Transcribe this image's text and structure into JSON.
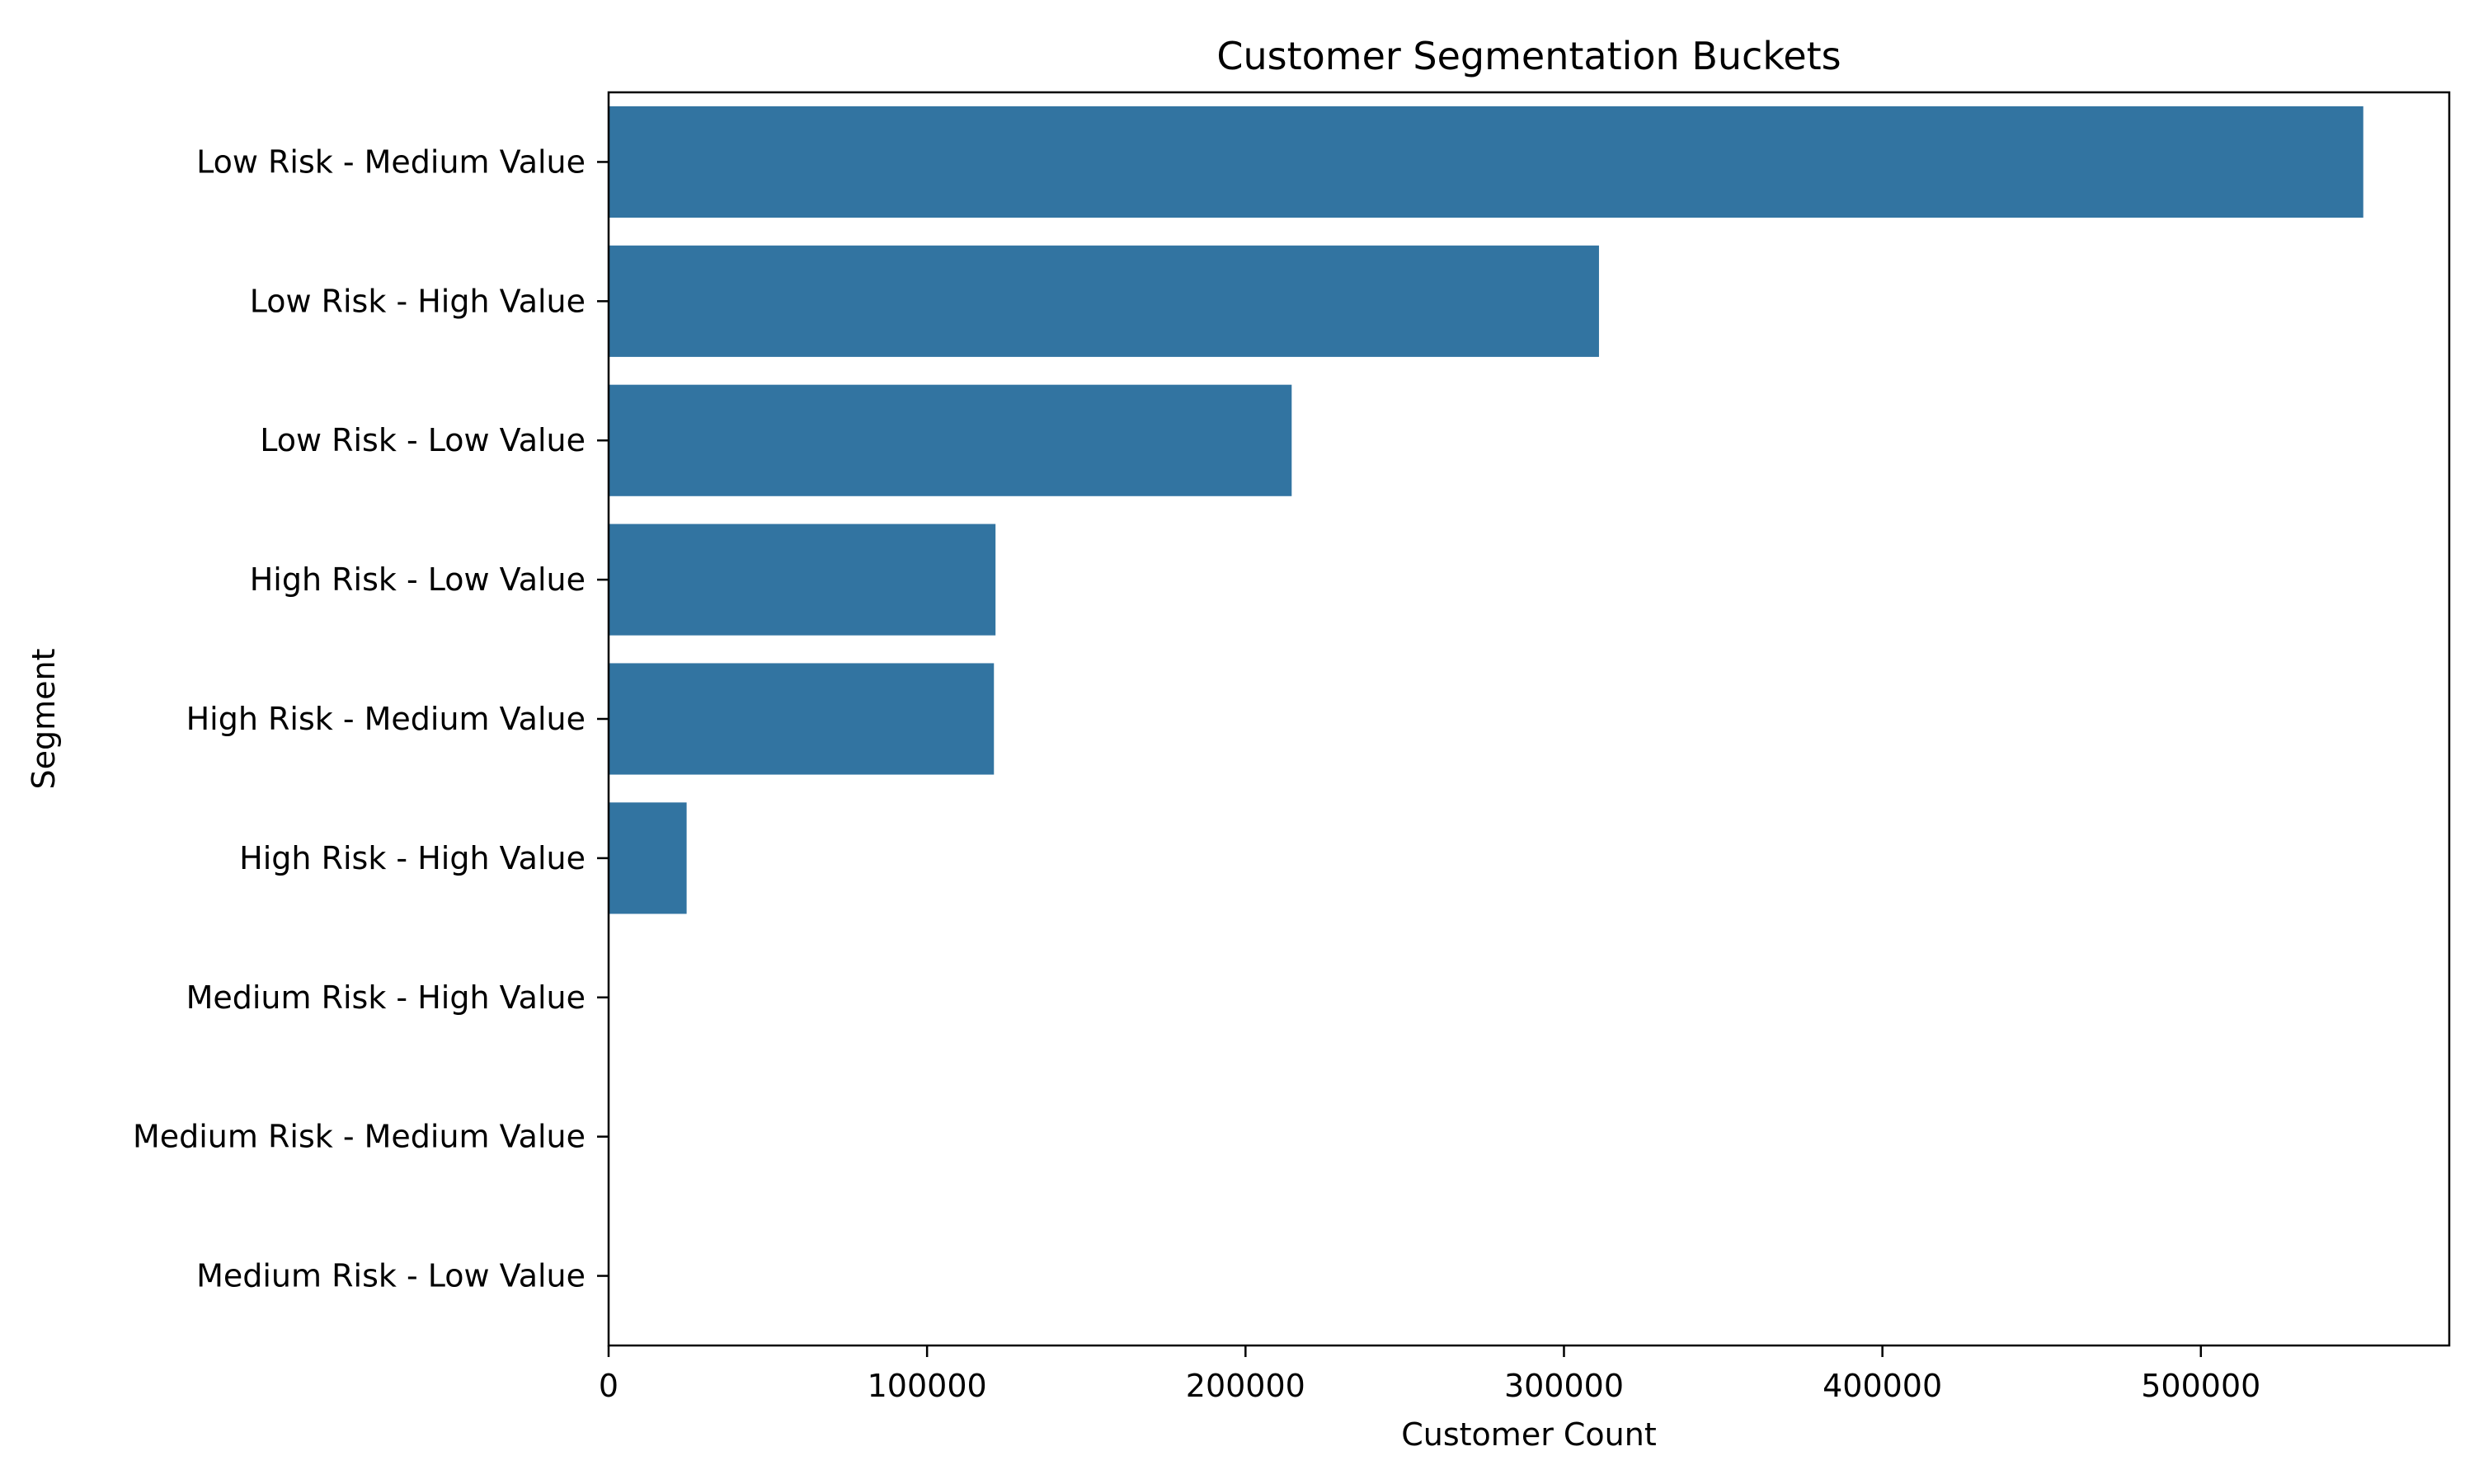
{
  "chart_data": {
    "type": "bar",
    "orientation": "horizontal",
    "title": "Customer Segmentation Buckets",
    "xlabel": "Customer Count",
    "ylabel": "Segment",
    "categories": [
      "Low Risk - Medium Value",
      "Low Risk - High Value",
      "Low Risk - Low Value",
      "High Risk - Low Value",
      "High Risk - Medium Value",
      "High Risk - High Value",
      "Medium Risk - High Value",
      "Medium Risk - Medium Value",
      "Medium Risk - Low Value"
    ],
    "values": [
      551000,
      311000,
      214500,
      121500,
      121000,
      24500,
      0,
      0,
      0
    ],
    "xlim": [
      0,
      578000
    ],
    "xticks": [
      0,
      100000,
      200000,
      300000,
      400000,
      500000
    ],
    "xtick_labels": [
      "0",
      "100000",
      "200000",
      "300000",
      "400000",
      "500000"
    ],
    "bar_color": "#3274a1",
    "grid": false,
    "legend": "none"
  }
}
